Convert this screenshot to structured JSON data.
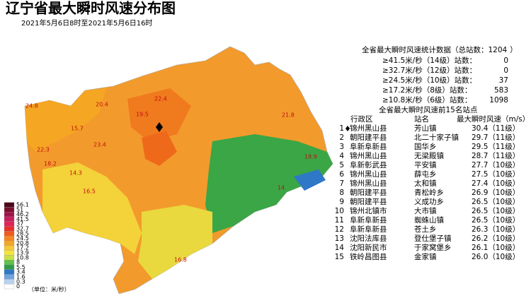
{
  "header": {
    "title": "辽宁省最大瞬时风速分布图",
    "subtitle": "2021年5月6日8时至2021年5月6日16时"
  },
  "legend": {
    "levels": [
      "56.1",
      "51",
      "46.2",
      "41.5",
      "37",
      "32.7",
      "28.5",
      "24.5",
      "20.8",
      "17.2",
      "13.9",
      "10.8",
      "8",
      "5.5",
      "3.4",
      "1.6",
      "0.3",
      "0"
    ],
    "colors": [
      "#4a0a1a",
      "#7a1030",
      "#a0144a",
      "#c81e5a",
      "#e0245a",
      "#e8302a",
      "#f05a1e",
      "#f7861e",
      "#f5a623",
      "#f7c836",
      "#f3e53f",
      "#c9e045",
      "#63c04a",
      "#2e9b48",
      "#2f77c7",
      "#6fa3e0",
      "#b9d2f0",
      "#ffffff"
    ],
    "unit": "（单位：米/秒）"
  },
  "map": {
    "labels": [
      "24.8",
      "22.3",
      "18.2",
      "14.3",
      "23.4",
      "19.5",
      "22.4",
      "20.4",
      "21.8",
      "18.9",
      "15.7",
      "16.5",
      "16.8",
      "14"
    ]
  },
  "stats": {
    "title": "全省最大瞬时风速统计数据（总站数：",
    "total": 1204,
    "title_end": "）",
    "rows": [
      {
        "label": "≥41.5米/秒（14级）站数：",
        "count": 0
      },
      {
        "label": "≥32.7米/秒（12级）站数：",
        "count": 0
      },
      {
        "label": "≥24.5米/秒（10级）站数：",
        "count": 37
      },
      {
        "label": "≥17.2米/秒（8级）站数：",
        "count": 583
      },
      {
        "label": "≥10.8米/秒（6级）站数：",
        "count": 1098
      }
    ]
  },
  "table": {
    "title": "全省最大瞬时风速前15名站点",
    "headers": [
      "行政区",
      "站名",
      "最大瞬时风速（m/s）"
    ],
    "rows": [
      [
        "1",
        "锦州黑山县",
        "芳山镇",
        "30.4（11级）"
      ],
      [
        "2",
        "朝阳建平县",
        "北二十家子镇",
        "29.7（11级）"
      ],
      [
        "3",
        "阜新阜新县",
        "国华乡",
        "29.5（11级）"
      ],
      [
        "4",
        "锦州黑山县",
        "无梁殿镇",
        "28.7（11级）"
      ],
      [
        "5",
        "阜新彰武县",
        "平安镇",
        "27.7（10级）"
      ],
      [
        "6",
        "锦州黑山县",
        "薛屯乡",
        "27.5（10级）"
      ],
      [
        "7",
        "锦州黑山县",
        "太和镇",
        "27.4（10级）"
      ],
      [
        "8",
        "朝阳建平县",
        "青松岭乡",
        "26.9（10级）"
      ],
      [
        "9",
        "朝阳建平县",
        "义成功乡",
        "26.5（10级）"
      ],
      [
        "10",
        "锦州北镇市",
        "大市镇",
        "26.5（10级）"
      ],
      [
        "11",
        "阜新阜新县",
        "蜘蛛山镇",
        "26.5（10级）"
      ],
      [
        "12",
        "阜新阜新县",
        "苍土乡",
        "26.3（10级）"
      ],
      [
        "13",
        "沈阳法库县",
        "登仕堡子镇",
        "26.2（10级）"
      ],
      [
        "14",
        "沈阳新民市",
        "于家窝堡乡",
        "26.1（10级）"
      ],
      [
        "15",
        "铁岭昌图县",
        "金家镇",
        "26.0（10级）"
      ]
    ]
  }
}
